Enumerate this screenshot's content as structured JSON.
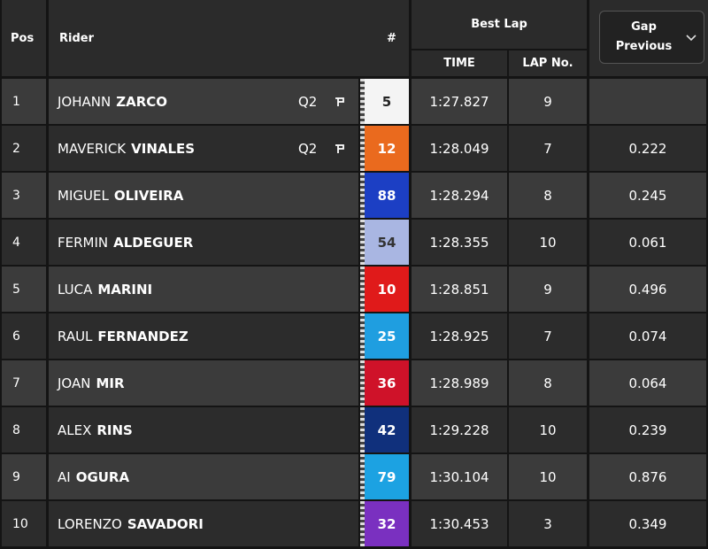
{
  "header": {
    "pos": "Pos",
    "rider": "Rider",
    "number": "#",
    "best_lap": "Best Lap",
    "time": "TIME",
    "lap_no": "LAP No.",
    "gap": "Gap Previous"
  },
  "rows": [
    {
      "pos": "1",
      "first": "JOHANN",
      "last": "ZARCO",
      "session": "Q2",
      "number": "5",
      "badge_color": "#f4f4f4",
      "number_color": "#222222",
      "time": "1:27.827",
      "lap": "9"
    },
    {
      "pos": "2",
      "first": "MAVERICK",
      "last": "VINALES",
      "session": "Q2",
      "number": "12",
      "badge_color": "#ea6a1e",
      "number_color": "#ffffff",
      "time": "1:28.049",
      "lap": "7",
      "gap": "0.222"
    },
    {
      "pos": "3",
      "first": "MIGUEL",
      "last": "OLIVEIRA",
      "number": "88",
      "badge_color": "#1c3fc4",
      "number_color": "#ffffff",
      "time": "1:28.294",
      "lap": "8",
      "gap": "0.245"
    },
    {
      "pos": "4",
      "first": "FERMIN",
      "last": "ALDEGUER",
      "number": "54",
      "badge_color": "#a9b6e2",
      "number_color": "#333333",
      "time": "1:28.355",
      "lap": "10",
      "gap": "0.061"
    },
    {
      "pos": "5",
      "first": "LUCA",
      "last": "MARINI",
      "number": "10",
      "badge_color": "#e01a1a",
      "number_color": "#ffffff",
      "time": "1:28.851",
      "lap": "9",
      "gap": "0.496"
    },
    {
      "pos": "6",
      "first": "RAUL",
      "last": "FERNANDEZ",
      "number": "25",
      "badge_color": "#1f9ee0",
      "number_color": "#ffffff",
      "time": "1:28.925",
      "lap": "7",
      "gap": "0.074"
    },
    {
      "pos": "7",
      "first": "JOAN",
      "last": "MIR",
      "number": "36",
      "badge_color": "#cf1229",
      "number_color": "#ffffff",
      "time": "1:28.989",
      "lap": "8",
      "gap": "0.064"
    },
    {
      "pos": "8",
      "first": "ALEX",
      "last": "RINS",
      "number": "42",
      "badge_color": "#10307c",
      "number_color": "#ffffff",
      "time": "1:29.228",
      "lap": "10",
      "gap": "0.239"
    },
    {
      "pos": "9",
      "first": "AI",
      "last": "OGURA",
      "number": "79",
      "badge_color": "#1ca2e2",
      "number_color": "#ffffff",
      "time": "1:30.104",
      "lap": "10",
      "gap": "0.876"
    },
    {
      "pos": "10",
      "first": "LORENZO",
      "last": "SAVADORI",
      "number": "32",
      "badge_color": "#7a30c0",
      "number_color": "#ffffff",
      "time": "1:30.453",
      "lap": "3",
      "gap": "0.349"
    }
  ]
}
